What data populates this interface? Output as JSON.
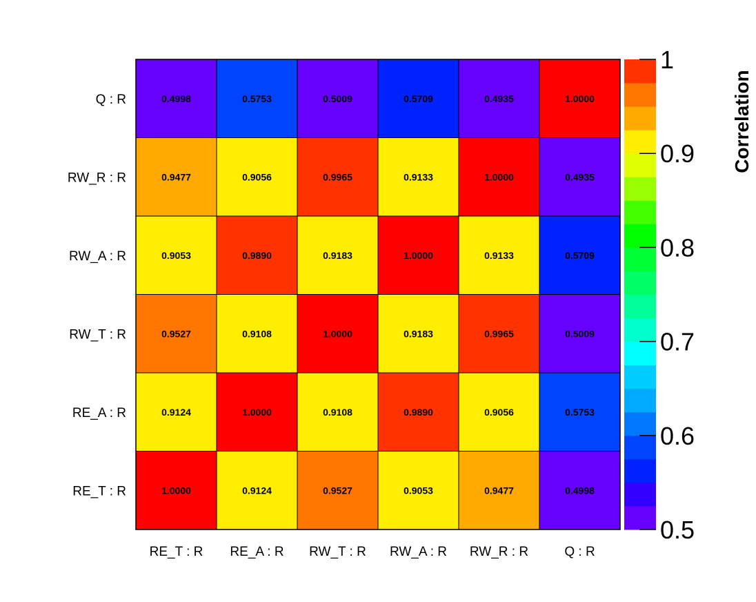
{
  "chart_data": {
    "type": "heatmap",
    "title": "",
    "x_labels": [
      "RE_T : R",
      "RE_A : R",
      "RW_T : R",
      "RW_A : R",
      "RW_R : R",
      "Q : R"
    ],
    "y_labels": [
      "RE_T : R",
      "RE_A : R",
      "RW_T : R",
      "RW_A : R",
      "RW_R : R",
      "Q : R"
    ],
    "matrix": [
      [
        1.0,
        0.9124,
        0.9527,
        0.9053,
        0.9477,
        0.4998
      ],
      [
        0.9124,
        1.0,
        0.9108,
        0.989,
        0.9056,
        0.5753
      ],
      [
        0.9527,
        0.9108,
        1.0,
        0.9183,
        0.9965,
        0.5009
      ],
      [
        0.9053,
        0.989,
        0.9183,
        1.0,
        0.9133,
        0.5709
      ],
      [
        0.9477,
        0.9056,
        0.9965,
        0.9133,
        1.0,
        0.4935
      ],
      [
        0.4998,
        0.5753,
        0.5009,
        0.5709,
        0.4935,
        1.0
      ]
    ],
    "matrix_row_order": "bottom-to-top",
    "cell_value_format": "4 decimals",
    "color_scale": {
      "title": "Correlation",
      "range": [
        0.5,
        1.0
      ],
      "ticks": [
        "0.5",
        "0.6",
        "0.7",
        "0.8",
        "0.9",
        "1"
      ],
      "bands": 20,
      "colors": [
        "#6600ff",
        "#3300ff",
        "#0022ff",
        "#0044ff",
        "#0077ff",
        "#00aaff",
        "#00ccff",
        "#00ffff",
        "#00ffcc",
        "#00ff99",
        "#00ff66",
        "#00ff33",
        "#00ff00",
        "#44ff00",
        "#99ff00",
        "#ddff00",
        "#ffee00",
        "#ffaa00",
        "#ff7700",
        "#ff3300",
        "#ff0000"
      ]
    },
    "legend_position": "right"
  }
}
